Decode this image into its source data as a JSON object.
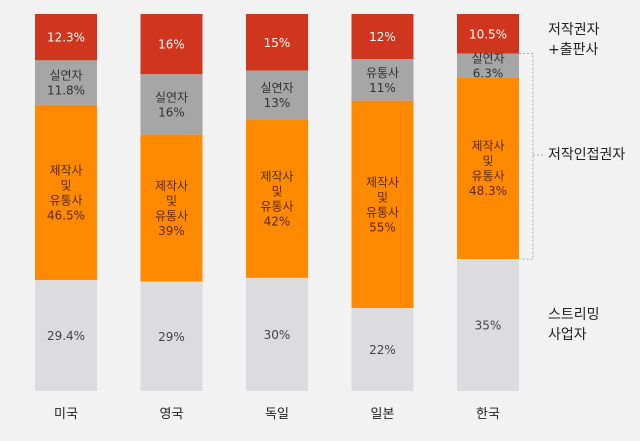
{
  "chart_data": {
    "type": "bar",
    "stacked": true,
    "categories": [
      "미국",
      "영국",
      "독일",
      "일본",
      "한국"
    ],
    "stack_order_top_to_bottom": [
      "top",
      "second",
      "third",
      "bottom"
    ],
    "bars": [
      {
        "category": "미국",
        "segments": [
          {
            "label": "",
            "value": 12.3,
            "value_text": "12.3%"
          },
          {
            "label": "실연자",
            "value": 11.8,
            "value_text": "11.8%"
          },
          {
            "label": "제작사\n및\n유통사",
            "value": 46.5,
            "value_text": "46.5%"
          },
          {
            "label": "",
            "value": 29.4,
            "value_text": "29.4%"
          }
        ]
      },
      {
        "category": "영국",
        "segments": [
          {
            "label": "",
            "value": 16,
            "value_text": "16%"
          },
          {
            "label": "실연자",
            "value": 16,
            "value_text": "16%"
          },
          {
            "label": "제작사\n및\n유통사",
            "value": 39,
            "value_text": "39%"
          },
          {
            "label": "",
            "value": 29,
            "value_text": "29%"
          }
        ]
      },
      {
        "category": "독일",
        "segments": [
          {
            "label": "",
            "value": 15,
            "value_text": "15%"
          },
          {
            "label": "실연자",
            "value": 13,
            "value_text": "13%"
          },
          {
            "label": "제작사\n및\n유통사",
            "value": 42,
            "value_text": "42%"
          },
          {
            "label": "",
            "value": 30,
            "value_text": "30%"
          }
        ]
      },
      {
        "category": "일본",
        "segments": [
          {
            "label": "",
            "value": 12,
            "value_text": "12%"
          },
          {
            "label": "유통사",
            "value": 11,
            "value_text": "11%"
          },
          {
            "label": "제작사\n및\n유통사",
            "value": 55,
            "value_text": "55%"
          },
          {
            "label": "",
            "value": 22,
            "value_text": "22%"
          }
        ]
      },
      {
        "category": "한국",
        "segments": [
          {
            "label": "",
            "value": 10.5,
            "value_text": "10.5%"
          },
          {
            "label": "실연자",
            "value": 6.3,
            "value_text": "6.3%"
          },
          {
            "label": "제작사\n및\n유통사",
            "value": 48.3,
            "value_text": "48.3%"
          },
          {
            "label": "",
            "value": 35,
            "value_text": "35%"
          }
        ]
      }
    ],
    "segment_colors": [
      "#d0351d",
      "#a6a6a6",
      "#ff8a00",
      "#dcdcde"
    ],
    "segment_text_colors": [
      "#ffffff",
      "#333333",
      "#5a2a00",
      "#444444"
    ],
    "legend": {
      "rights_holders": [
        "저작권자",
        "+출판사"
      ],
      "neighboring_rights": "저작인접권자",
      "streaming": [
        "스트리밍",
        "사업자"
      ]
    },
    "ylim": [
      0,
      100
    ]
  }
}
